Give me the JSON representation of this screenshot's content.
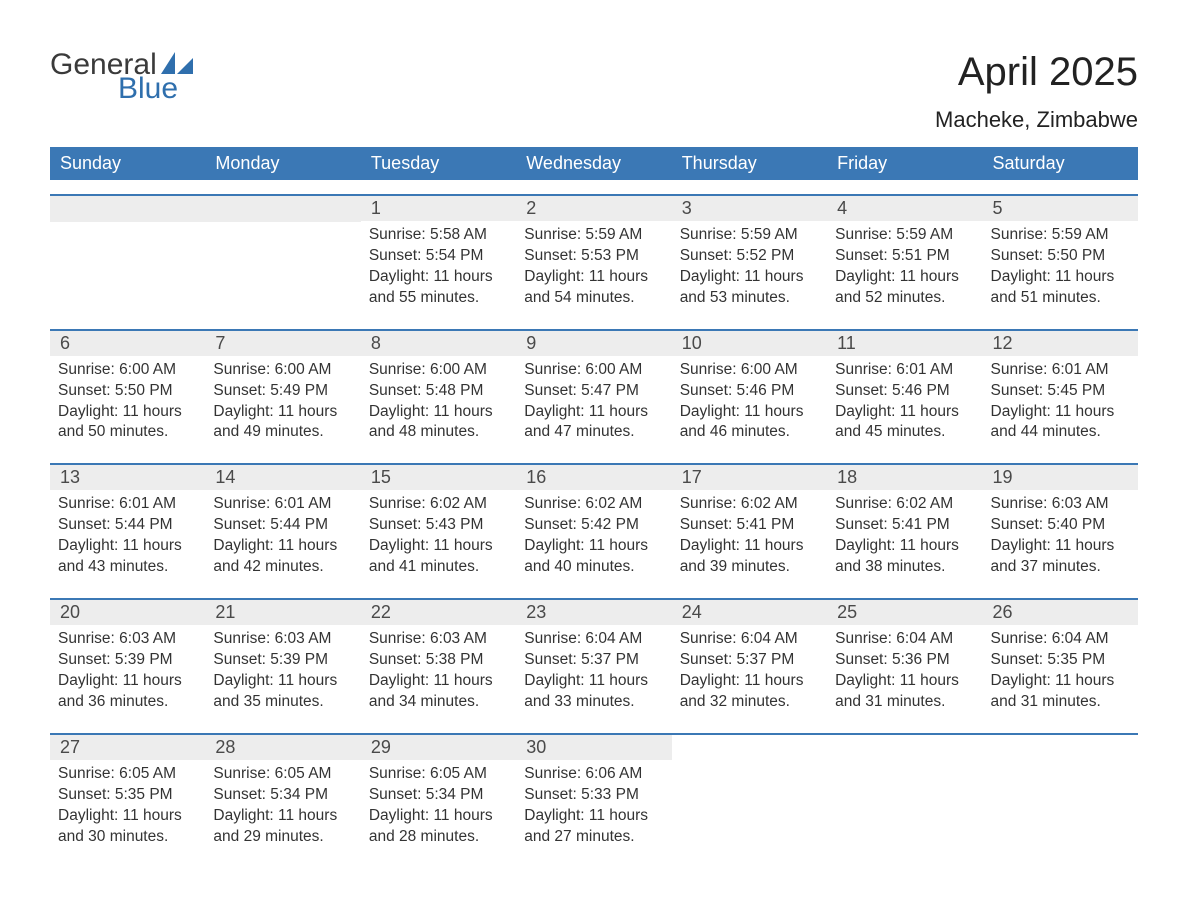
{
  "brand": {
    "general": "General",
    "blue": "Blue"
  },
  "title": "April 2025",
  "location": "Macheke, Zimbabwe",
  "colors": {
    "header_bg": "#3b78b5",
    "header_text": "#ffffff",
    "daynum_bg": "#ededed",
    "daynum_text": "#4a4a4a",
    "body_text": "#333333",
    "divider": "#3b78b5",
    "logo_gray": "#3a3a3a",
    "logo_blue": "#2f6fad",
    "background": "#ffffff"
  },
  "weekdays": [
    "Sunday",
    "Monday",
    "Tuesday",
    "Wednesday",
    "Thursday",
    "Friday",
    "Saturday"
  ],
  "label": {
    "sunrise": "Sunrise: ",
    "sunset": "Sunset: ",
    "daylight": "Daylight: "
  },
  "weeks": [
    [
      {
        "empty": true
      },
      {
        "empty": true
      },
      {
        "n": "1",
        "sr": "5:58 AM",
        "ss": "5:54 PM",
        "dl": "11 hours and 55 minutes."
      },
      {
        "n": "2",
        "sr": "5:59 AM",
        "ss": "5:53 PM",
        "dl": "11 hours and 54 minutes."
      },
      {
        "n": "3",
        "sr": "5:59 AM",
        "ss": "5:52 PM",
        "dl": "11 hours and 53 minutes."
      },
      {
        "n": "4",
        "sr": "5:59 AM",
        "ss": "5:51 PM",
        "dl": "11 hours and 52 minutes."
      },
      {
        "n": "5",
        "sr": "5:59 AM",
        "ss": "5:50 PM",
        "dl": "11 hours and 51 minutes."
      }
    ],
    [
      {
        "n": "6",
        "sr": "6:00 AM",
        "ss": "5:50 PM",
        "dl": "11 hours and 50 minutes."
      },
      {
        "n": "7",
        "sr": "6:00 AM",
        "ss": "5:49 PM",
        "dl": "11 hours and 49 minutes."
      },
      {
        "n": "8",
        "sr": "6:00 AM",
        "ss": "5:48 PM",
        "dl": "11 hours and 48 minutes."
      },
      {
        "n": "9",
        "sr": "6:00 AM",
        "ss": "5:47 PM",
        "dl": "11 hours and 47 minutes."
      },
      {
        "n": "10",
        "sr": "6:00 AM",
        "ss": "5:46 PM",
        "dl": "11 hours and 46 minutes."
      },
      {
        "n": "11",
        "sr": "6:01 AM",
        "ss": "5:46 PM",
        "dl": "11 hours and 45 minutes."
      },
      {
        "n": "12",
        "sr": "6:01 AM",
        "ss": "5:45 PM",
        "dl": "11 hours and 44 minutes."
      }
    ],
    [
      {
        "n": "13",
        "sr": "6:01 AM",
        "ss": "5:44 PM",
        "dl": "11 hours and 43 minutes."
      },
      {
        "n": "14",
        "sr": "6:01 AM",
        "ss": "5:44 PM",
        "dl": "11 hours and 42 minutes."
      },
      {
        "n": "15",
        "sr": "6:02 AM",
        "ss": "5:43 PM",
        "dl": "11 hours and 41 minutes."
      },
      {
        "n": "16",
        "sr": "6:02 AM",
        "ss": "5:42 PM",
        "dl": "11 hours and 40 minutes."
      },
      {
        "n": "17",
        "sr": "6:02 AM",
        "ss": "5:41 PM",
        "dl": "11 hours and 39 minutes."
      },
      {
        "n": "18",
        "sr": "6:02 AM",
        "ss": "5:41 PM",
        "dl": "11 hours and 38 minutes."
      },
      {
        "n": "19",
        "sr": "6:03 AM",
        "ss": "5:40 PM",
        "dl": "11 hours and 37 minutes."
      }
    ],
    [
      {
        "n": "20",
        "sr": "6:03 AM",
        "ss": "5:39 PM",
        "dl": "11 hours and 36 minutes."
      },
      {
        "n": "21",
        "sr": "6:03 AM",
        "ss": "5:39 PM",
        "dl": "11 hours and 35 minutes."
      },
      {
        "n": "22",
        "sr": "6:03 AM",
        "ss": "5:38 PM",
        "dl": "11 hours and 34 minutes."
      },
      {
        "n": "23",
        "sr": "6:04 AM",
        "ss": "5:37 PM",
        "dl": "11 hours and 33 minutes."
      },
      {
        "n": "24",
        "sr": "6:04 AM",
        "ss": "5:37 PM",
        "dl": "11 hours and 32 minutes."
      },
      {
        "n": "25",
        "sr": "6:04 AM",
        "ss": "5:36 PM",
        "dl": "11 hours and 31 minutes."
      },
      {
        "n": "26",
        "sr": "6:04 AM",
        "ss": "5:35 PM",
        "dl": "11 hours and 31 minutes."
      }
    ],
    [
      {
        "n": "27",
        "sr": "6:05 AM",
        "ss": "5:35 PM",
        "dl": "11 hours and 30 minutes."
      },
      {
        "n": "28",
        "sr": "6:05 AM",
        "ss": "5:34 PM",
        "dl": "11 hours and 29 minutes."
      },
      {
        "n": "29",
        "sr": "6:05 AM",
        "ss": "5:34 PM",
        "dl": "11 hours and 28 minutes."
      },
      {
        "n": "30",
        "sr": "6:06 AM",
        "ss": "5:33 PM",
        "dl": "11 hours and 27 minutes."
      },
      {
        "empty": true,
        "blank": true
      },
      {
        "empty": true,
        "blank": true
      },
      {
        "empty": true,
        "blank": true
      }
    ]
  ]
}
